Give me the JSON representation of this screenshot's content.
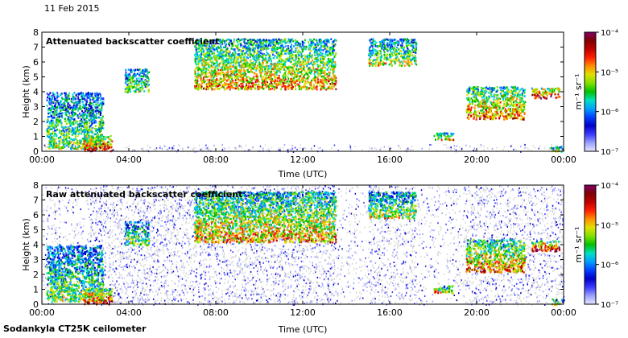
{
  "header": {
    "date": "11 Feb 2015"
  },
  "footer": {
    "instrument": "Sodankyla CT25K ceilometer"
  },
  "colormap": [
    "#e6e6ff",
    "#9aa0ff",
    "#3a3aff",
    "#0000c8",
    "#0040ff",
    "#00a0ff",
    "#00e0c0",
    "#00c000",
    "#80e000",
    "#e0e000",
    "#ff9000",
    "#ff2000",
    "#c00000",
    "#800000",
    "#80006a"
  ],
  "chart_data": [
    {
      "type": "heatmap",
      "title": "Attenuated backscatter coefficient",
      "xlabel": "Time (UTC)",
      "ylabel": "Height (km)",
      "xlim": [
        0,
        24
      ],
      "ylim": [
        0,
        8
      ],
      "xticks": [
        "00:00",
        "04:00",
        "08:00",
        "12:00",
        "16:00",
        "20:00",
        "00:00"
      ],
      "yticks": [
        "0",
        "1",
        "2",
        "3",
        "4",
        "5",
        "6",
        "7",
        "8"
      ],
      "colorbar": {
        "label": "m⁻¹ sr⁻¹",
        "scale": "log",
        "range": [
          1e-07,
          0.0001
        ],
        "ticks": [
          "10⁻⁴",
          "10⁻⁵",
          "10⁻⁶",
          "10⁻⁷"
        ]
      },
      "layers": [
        {
          "kind": "noise",
          "t": [
            0,
            24
          ],
          "h": [
            0,
            0.5
          ],
          "level": 0.08
        },
        {
          "kind": "noise",
          "t": [
            3.8,
            13.5
          ],
          "h": [
            0,
            0.3
          ],
          "level": 0.25
        },
        {
          "kind": "cloud",
          "t": [
            0.2,
            2.8
          ],
          "h": [
            0.2,
            4.0
          ],
          "level": 0.55,
          "note": "descending boundary layer"
        },
        {
          "kind": "cloud",
          "t": [
            1.9,
            3.2
          ],
          "h": [
            0.05,
            1.1
          ],
          "level": 0.85
        },
        {
          "kind": "cloud",
          "t": [
            3.8,
            4.9
          ],
          "h": [
            4.0,
            5.6
          ],
          "level": 0.55
        },
        {
          "kind": "cloud",
          "t": [
            7.0,
            13.5
          ],
          "h": [
            4.2,
            7.6
          ],
          "level": 0.7,
          "note": "mid-level cloud"
        },
        {
          "kind": "cloud",
          "t": [
            15.0,
            17.2
          ],
          "h": [
            5.8,
            7.6
          ],
          "level": 0.6
        },
        {
          "kind": "cloud",
          "t": [
            18.0,
            18.9
          ],
          "h": [
            0.8,
            1.3
          ],
          "level": 0.7
        },
        {
          "kind": "cloud",
          "t": [
            19.5,
            22.2
          ],
          "h": [
            2.2,
            4.4
          ],
          "level": 0.75
        },
        {
          "kind": "cloud",
          "t": [
            22.5,
            23.8
          ],
          "h": [
            3.6,
            4.3
          ],
          "level": 0.9
        },
        {
          "kind": "cloud",
          "t": [
            23.4,
            24.0
          ],
          "h": [
            0,
            0.4
          ],
          "level": 0.6
        }
      ]
    },
    {
      "type": "heatmap",
      "title": "Raw attenuated backscatter coefficient",
      "xlabel": "Time (UTC)",
      "ylabel": "Height (km)",
      "xlim": [
        0,
        24
      ],
      "ylim": [
        0,
        8
      ],
      "xticks": [
        "00:00",
        "04:00",
        "08:00",
        "12:00",
        "16:00",
        "20:00",
        "00:00"
      ],
      "yticks": [
        "0",
        "1",
        "2",
        "3",
        "4",
        "5",
        "6",
        "7",
        "8"
      ],
      "colorbar": {
        "label": "m⁻¹ sr⁻¹",
        "scale": "log",
        "range": [
          1e-07,
          0.0001
        ],
        "ticks": [
          "10⁻⁴",
          "10⁻⁵",
          "10⁻⁶",
          "10⁻⁷"
        ]
      },
      "layers": [
        {
          "kind": "noise",
          "t": [
            0,
            24
          ],
          "h": [
            0,
            8
          ],
          "level": 0.05
        },
        {
          "kind": "noise",
          "t": [
            2.2,
            13.5
          ],
          "h": [
            0,
            8
          ],
          "level": 0.2
        },
        {
          "kind": "noise",
          "t": [
            15.0,
            17.2
          ],
          "h": [
            0,
            8
          ],
          "level": 0.15
        },
        {
          "kind": "noise",
          "t": [
            19.4,
            24.0
          ],
          "h": [
            0,
            8
          ],
          "level": 0.15
        },
        {
          "kind": "cloud",
          "t": [
            0.2,
            2.8
          ],
          "h": [
            0.2,
            4.0
          ],
          "level": 0.55
        },
        {
          "kind": "cloud",
          "t": [
            1.9,
            3.2
          ],
          "h": [
            0.05,
            1.1
          ],
          "level": 0.85
        },
        {
          "kind": "cloud",
          "t": [
            3.8,
            4.9
          ],
          "h": [
            4.0,
            5.6
          ],
          "level": 0.55
        },
        {
          "kind": "cloud",
          "t": [
            7.0,
            13.5
          ],
          "h": [
            4.2,
            7.6
          ],
          "level": 0.7
        },
        {
          "kind": "cloud",
          "t": [
            15.0,
            17.2
          ],
          "h": [
            5.8,
            7.6
          ],
          "level": 0.6
        },
        {
          "kind": "cloud",
          "t": [
            18.0,
            18.9
          ],
          "h": [
            0.8,
            1.3
          ],
          "level": 0.7
        },
        {
          "kind": "cloud",
          "t": [
            19.5,
            22.2
          ],
          "h": [
            2.2,
            4.4
          ],
          "level": 0.75
        },
        {
          "kind": "cloud",
          "t": [
            22.5,
            23.8
          ],
          "h": [
            3.6,
            4.3
          ],
          "level": 0.9
        },
        {
          "kind": "cloud",
          "t": [
            23.4,
            24.0
          ],
          "h": [
            0,
            0.4
          ],
          "level": 0.6
        }
      ]
    }
  ]
}
